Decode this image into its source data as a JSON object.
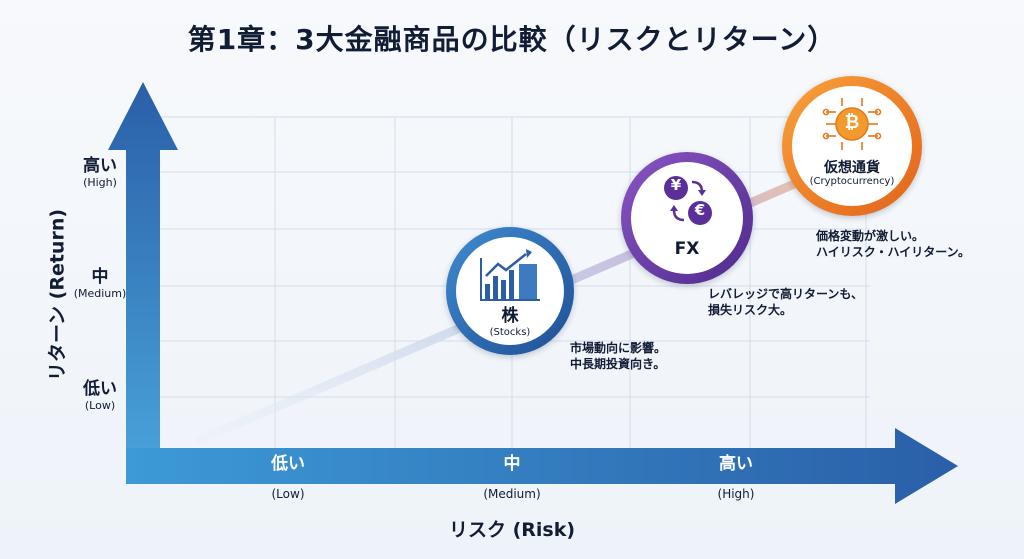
{
  "title": "第1章：3大金融商品の比較（リスクとリターン）",
  "y_axis": {
    "title": "リターン (Return)",
    "levels": [
      {
        "main": "高い",
        "sub": "(High)"
      },
      {
        "main": "中",
        "sub": "(Medium)"
      },
      {
        "main": "低い",
        "sub": "(Low)"
      }
    ]
  },
  "x_axis": {
    "title": "リスク (Risk)",
    "levels": [
      {
        "main": "低い",
        "sub": "(Low)"
      },
      {
        "main": "中",
        "sub": "(Medium)"
      },
      {
        "main": "高い",
        "sub": "(High)"
      }
    ]
  },
  "products": [
    {
      "label": "株",
      "sub": "(Stocks)",
      "note_line1": "市場動向に影響。",
      "note_line2": "中長期投資向き。",
      "color": "#2f6db5",
      "icon": "bar-chart-icon"
    },
    {
      "label": "FX",
      "sub": "",
      "note_line1": "レバレッジで高リターンも、",
      "note_line2": "損失リスク大。",
      "color": "#6a3ea8",
      "icon": "currency-exchange-icon",
      "symbols": {
        "yen": "¥",
        "euro": "€"
      }
    },
    {
      "label": "仮想通貨",
      "sub": "(Cryptocurrency)",
      "note_line1": "価格変動が激しい。",
      "note_line2": "ハイリスク・ハイリターン。",
      "color": "#ef7d1a",
      "icon": "bitcoin-icon",
      "symbols": {
        "bitcoin": "₿"
      }
    }
  ],
  "colors": {
    "axis_blue": "#2a6fb5",
    "title": "#111c35",
    "stocks": "#2f6db5",
    "fx": "#6a3ea8",
    "crypto": "#ef7d1a"
  }
}
